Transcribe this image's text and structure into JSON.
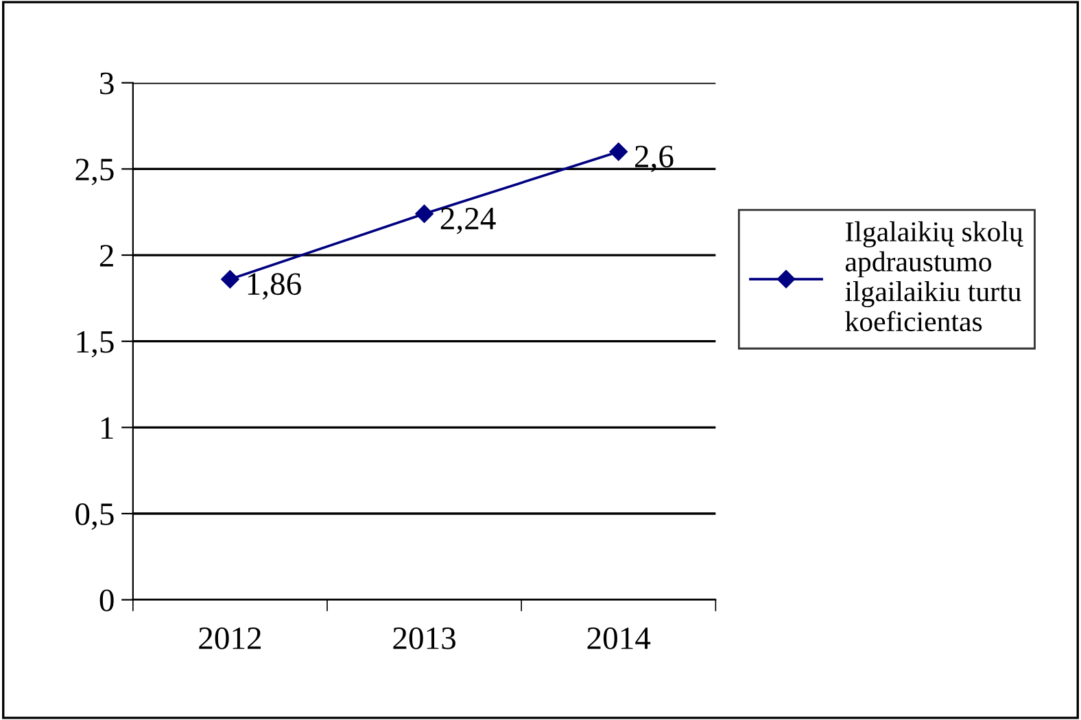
{
  "chart_data": {
    "type": "line",
    "categories": [
      "2012",
      "2013",
      "2014"
    ],
    "series": [
      {
        "name": "Ilgalaikių skolų apdraustumo ilgailaikiu turtu koeficientas",
        "color": "#000080",
        "values": [
          1.86,
          2.24,
          2.6
        ],
        "value_labels": [
          "1,86",
          "2,24",
          "2,6"
        ]
      }
    ],
    "ylim": [
      0,
      3
    ],
    "yticks": [
      0,
      {
        "value": 0.5,
        "label": "0,5"
      },
      1,
      {
        "value": 1.5,
        "label": "1,5"
      },
      2,
      {
        "value": 2.5,
        "label": "2,5"
      },
      3
    ],
    "grid": "y",
    "legend": "right",
    "marker": "diamond",
    "line_style": "solid"
  }
}
